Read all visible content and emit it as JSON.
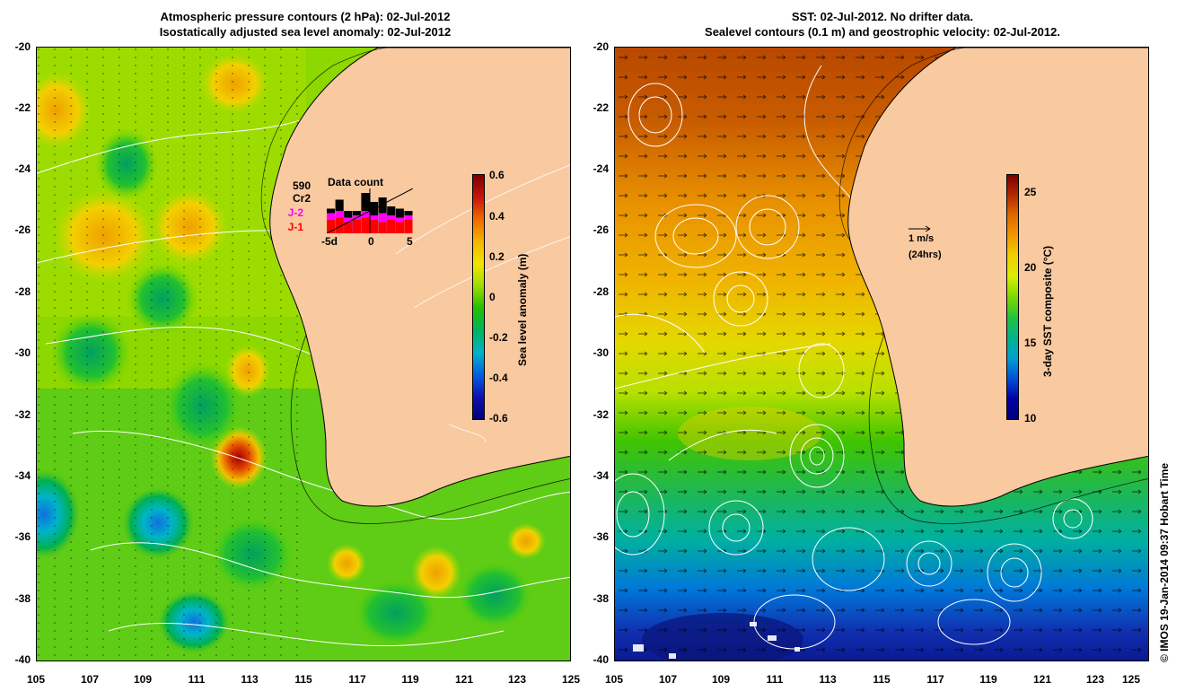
{
  "left_panel": {
    "title_line1": "Atmospheric pressure contours (2 hPa): 02-Jul-2012",
    "title_line2": "Isostatically adjusted sea level anomaly: 02-Jul-2012",
    "colorbar_title": "Sea level anomaly (m)",
    "colorbar_ticks": [
      "0.6",
      "0.4",
      "0.2",
      "0",
      "-0.2",
      "-0.4",
      "-0.6"
    ],
    "inset": {
      "title": "Data count",
      "count": "590",
      "missions": [
        "Cr2",
        "J-2",
        "J-1"
      ],
      "mission_colors": [
        "#000000",
        "#ff00ff",
        "#ff0000"
      ],
      "x_ticks": [
        "-5d",
        "0",
        "5"
      ],
      "bars_black": [
        0.55,
        0.75,
        0.5,
        0.5,
        0.9,
        0.7,
        0.8,
        0.6,
        0.55,
        0.5
      ],
      "bars_magenta": [
        0.45,
        0.5,
        0.35,
        0.4,
        0.5,
        0.4,
        0.45,
        0.4,
        0.35,
        0.4
      ],
      "bars_red": [
        0.3,
        0.35,
        0.25,
        0.3,
        0.35,
        0.3,
        0.25,
        0.3,
        0.25,
        0.3
      ]
    }
  },
  "right_panel": {
    "title_line1": "SST: 02-Jul-2012. No drifter data.",
    "title_line2": "Sealevel contours (0.1 m) and geostrophic velocity: 02-Jul-2012.",
    "colorbar_title": "3-day SST composite (°C)",
    "colorbar_ticks": [
      "25",
      "20",
      "15",
      "10"
    ],
    "velocity_scale": {
      "label": "1 m/s",
      "sublabel": "(24hrs)"
    }
  },
  "axes": {
    "y_ticks": [
      "-20",
      "-22",
      "-24",
      "-26",
      "-28",
      "-30",
      "-32",
      "-34",
      "-36",
      "-38",
      "-40"
    ],
    "x_ticks": [
      "105",
      "107",
      "109",
      "111",
      "113",
      "115",
      "117",
      "119",
      "121",
      "123",
      "125"
    ]
  },
  "credit": "© IMOS 19-Jan-2014 09:37 Hobart Time",
  "colors": {
    "land": "#f9c9a0",
    "coast": "#000000",
    "contour": "#ffffff"
  }
}
